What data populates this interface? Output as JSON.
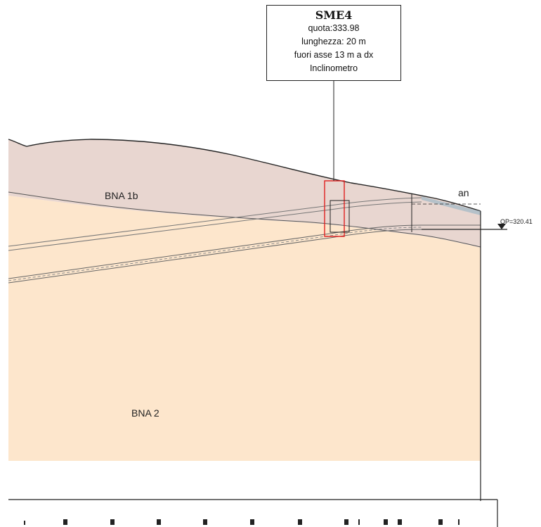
{
  "borehole": {
    "id": "SME4",
    "quota": "quota:333.98",
    "lunghezza": "lunghezza: 20 m",
    "offset": "fuori asse 13 m a dx",
    "instrument": "Inclinometro"
  },
  "layers": {
    "upper": "BNA 1b",
    "lower": "BNA 2"
  },
  "annotations": {
    "an": "an",
    "qp": "QP=320.41"
  },
  "colors": {
    "upper_layer": "#e8d6d0",
    "lower_layer": "#fde6cc",
    "marker_red": "#e02020",
    "line": "#222222"
  }
}
